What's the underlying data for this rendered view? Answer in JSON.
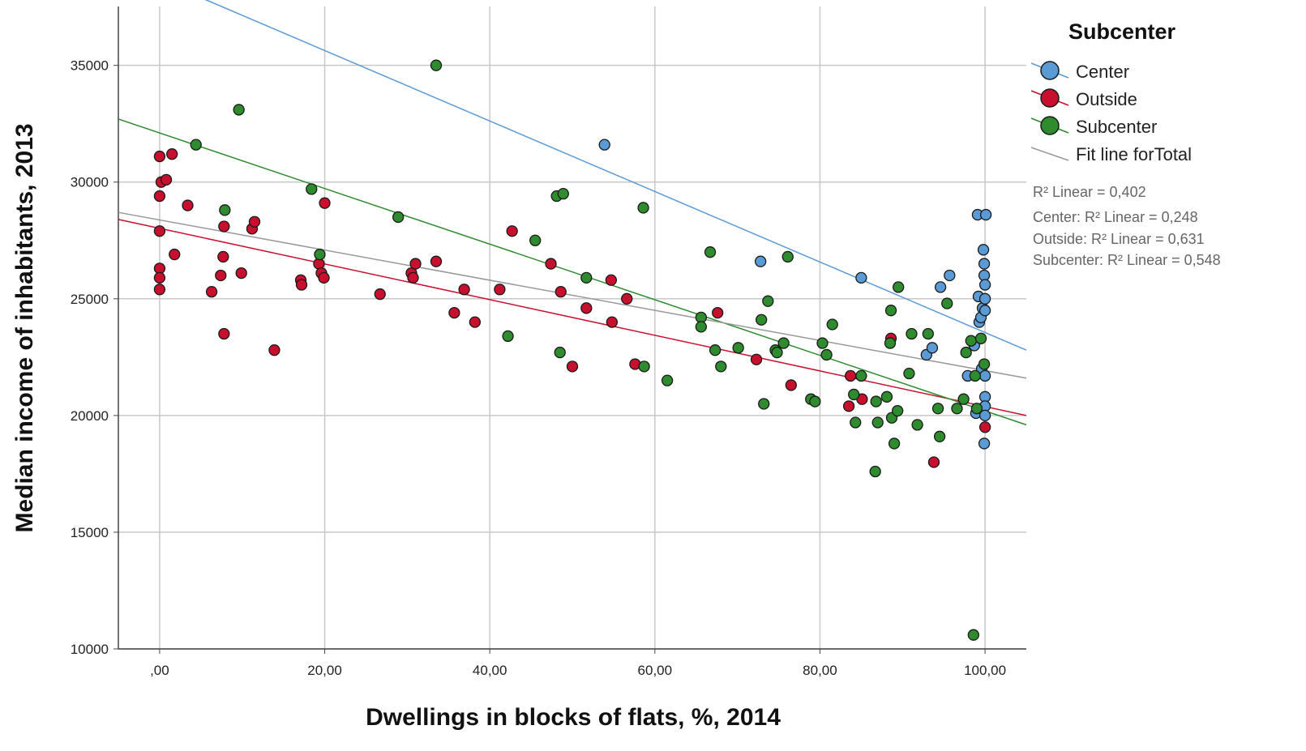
{
  "chart_data": {
    "type": "scatter",
    "xlabel": "Dwellings in blocks of flats, %, 2014",
    "ylabel": "Median income of inhabitants, 2013",
    "xlim": [
      -5,
      105
    ],
    "ylim": [
      10000,
      37800
    ],
    "x_ticks": [
      ",00",
      "20,00",
      "40,00",
      "60,00",
      "80,00",
      "100,00"
    ],
    "y_ticks": [
      "10000",
      "15000",
      "20000",
      "25000",
      "30000",
      "35000"
    ],
    "grid": true,
    "legend_placement": "right",
    "legend": {
      "title": "Subcenter",
      "total_label": "Fit line forTotal"
    },
    "r2_labels": [
      "R² Linear = 0,402",
      "Center: R² Linear = 0,248",
      "Outside: R² Linear = 0,631",
      "Subcenter: R² Linear = 0,548"
    ],
    "colors": {
      "Center": "#5b9bd5",
      "Outside": "#c8102e",
      "Subcenter": "#2e8b2e",
      "Total": "#999999",
      "grid": "#c8c8c8"
    },
    "fit_lines": [
      {
        "name": "Center",
        "x": [
          5,
          105
        ],
        "y": [
          37900,
          22800
        ]
      },
      {
        "name": "Outside",
        "x": [
          -5,
          105
        ],
        "y": [
          28400,
          20000
        ]
      },
      {
        "name": "Subcenter",
        "x": [
          -5,
          105
        ],
        "y": [
          32700,
          19600
        ]
      },
      {
        "name": "Total",
        "x": [
          -5,
          105
        ],
        "y": [
          28700,
          21600
        ]
      }
    ],
    "series": [
      {
        "name": "Center",
        "points": [
          [
            53.9,
            31600
          ],
          [
            72.8,
            26600
          ],
          [
            85.0,
            25900
          ],
          [
            92.9,
            22600
          ],
          [
            93.6,
            22900
          ],
          [
            94.6,
            25500
          ],
          [
            95.7,
            26000
          ],
          [
            97.9,
            21700
          ],
          [
            98.7,
            23000
          ],
          [
            98.9,
            20100
          ],
          [
            99.1,
            28600
          ],
          [
            99.2,
            25100
          ],
          [
            99.3,
            24000
          ],
          [
            99.5,
            24200
          ],
          [
            99.6,
            22000
          ],
          [
            99.7,
            24600
          ],
          [
            99.8,
            27100
          ],
          [
            99.9,
            26500
          ],
          [
            99.9,
            26000
          ],
          [
            100.0,
            25600
          ],
          [
            100.0,
            25000
          ],
          [
            100.0,
            24500
          ],
          [
            100.0,
            21700
          ],
          [
            100.0,
            20800
          ],
          [
            100.0,
            20400
          ],
          [
            100.0,
            20000
          ],
          [
            99.9,
            18800
          ],
          [
            100.1,
            28600
          ]
        ]
      },
      {
        "name": "Outside",
        "points": [
          [
            0.0,
            31100
          ],
          [
            0.2,
            30000
          ],
          [
            0.8,
            30100
          ],
          [
            1.5,
            31200
          ],
          [
            0.0,
            29400
          ],
          [
            0.0,
            27900
          ],
          [
            0.0,
            26300
          ],
          [
            0.0,
            25900
          ],
          [
            0.0,
            25400
          ],
          [
            1.8,
            26900
          ],
          [
            3.4,
            29000
          ],
          [
            6.3,
            25300
          ],
          [
            7.4,
            26000
          ],
          [
            7.7,
            26800
          ],
          [
            7.8,
            28100
          ],
          [
            7.8,
            23500
          ],
          [
            9.9,
            26100
          ],
          [
            11.2,
            28000
          ],
          [
            11.5,
            28300
          ],
          [
            13.9,
            22800
          ],
          [
            17.1,
            25800
          ],
          [
            17.2,
            25600
          ],
          [
            19.3,
            26500
          ],
          [
            19.6,
            26100
          ],
          [
            19.9,
            25900
          ],
          [
            20.0,
            29100
          ],
          [
            26.7,
            25200
          ],
          [
            30.5,
            26100
          ],
          [
            30.7,
            25900
          ],
          [
            31.0,
            26500
          ],
          [
            33.5,
            26600
          ],
          [
            35.7,
            24400
          ],
          [
            36.9,
            25400
          ],
          [
            38.2,
            24000
          ],
          [
            41.2,
            25400
          ],
          [
            42.7,
            27900
          ],
          [
            47.4,
            26500
          ],
          [
            48.6,
            25300
          ],
          [
            50.0,
            22100
          ],
          [
            51.7,
            24600
          ],
          [
            54.7,
            25800
          ],
          [
            54.8,
            24000
          ],
          [
            56.6,
            25000
          ],
          [
            57.6,
            22200
          ],
          [
            67.6,
            24400
          ],
          [
            72.3,
            22400
          ],
          [
            76.5,
            21300
          ],
          [
            83.5,
            20400
          ],
          [
            83.7,
            21700
          ],
          [
            85.1,
            20700
          ],
          [
            88.6,
            23300
          ],
          [
            93.8,
            18000
          ],
          [
            100.0,
            19500
          ]
        ]
      },
      {
        "name": "Subcenter",
        "points": [
          [
            4.4,
            31600
          ],
          [
            9.6,
            33100
          ],
          [
            7.9,
            28800
          ],
          [
            18.4,
            29700
          ],
          [
            19.4,
            26900
          ],
          [
            28.9,
            28500
          ],
          [
            33.5,
            35000
          ],
          [
            42.2,
            23400
          ],
          [
            45.5,
            27500
          ],
          [
            48.1,
            29400
          ],
          [
            48.5,
            22700
          ],
          [
            48.9,
            29500
          ],
          [
            51.7,
            25900
          ],
          [
            58.6,
            28900
          ],
          [
            58.7,
            22100
          ],
          [
            61.5,
            21500
          ],
          [
            65.6,
            24200
          ],
          [
            65.6,
            23800
          ],
          [
            66.7,
            27000
          ],
          [
            67.3,
            22800
          ],
          [
            68.0,
            22100
          ],
          [
            70.1,
            22900
          ],
          [
            72.9,
            24100
          ],
          [
            73.2,
            20500
          ],
          [
            73.7,
            24900
          ],
          [
            74.6,
            22800
          ],
          [
            74.8,
            22700
          ],
          [
            75.6,
            23100
          ],
          [
            76.1,
            26800
          ],
          [
            78.9,
            20700
          ],
          [
            79.4,
            20600
          ],
          [
            80.3,
            23100
          ],
          [
            80.8,
            22600
          ],
          [
            81.5,
            23900
          ],
          [
            84.1,
            20900
          ],
          [
            84.3,
            19700
          ],
          [
            85.0,
            21700
          ],
          [
            86.7,
            17600
          ],
          [
            86.8,
            20600
          ],
          [
            87.0,
            19700
          ],
          [
            88.1,
            20800
          ],
          [
            88.5,
            23100
          ],
          [
            88.6,
            24500
          ],
          [
            88.7,
            19900
          ],
          [
            89.0,
            18800
          ],
          [
            89.4,
            20200
          ],
          [
            89.5,
            25500
          ],
          [
            90.8,
            21800
          ],
          [
            91.1,
            23500
          ],
          [
            91.8,
            19600
          ],
          [
            93.1,
            23500
          ],
          [
            94.3,
            20300
          ],
          [
            94.5,
            19100
          ],
          [
            95.4,
            24800
          ],
          [
            96.6,
            20300
          ],
          [
            97.4,
            20700
          ],
          [
            97.7,
            22700
          ],
          [
            98.3,
            23200
          ],
          [
            98.8,
            21700
          ],
          [
            99.0,
            20300
          ],
          [
            99.5,
            23300
          ],
          [
            99.9,
            22200
          ],
          [
            98.6,
            10600
          ]
        ]
      }
    ]
  }
}
